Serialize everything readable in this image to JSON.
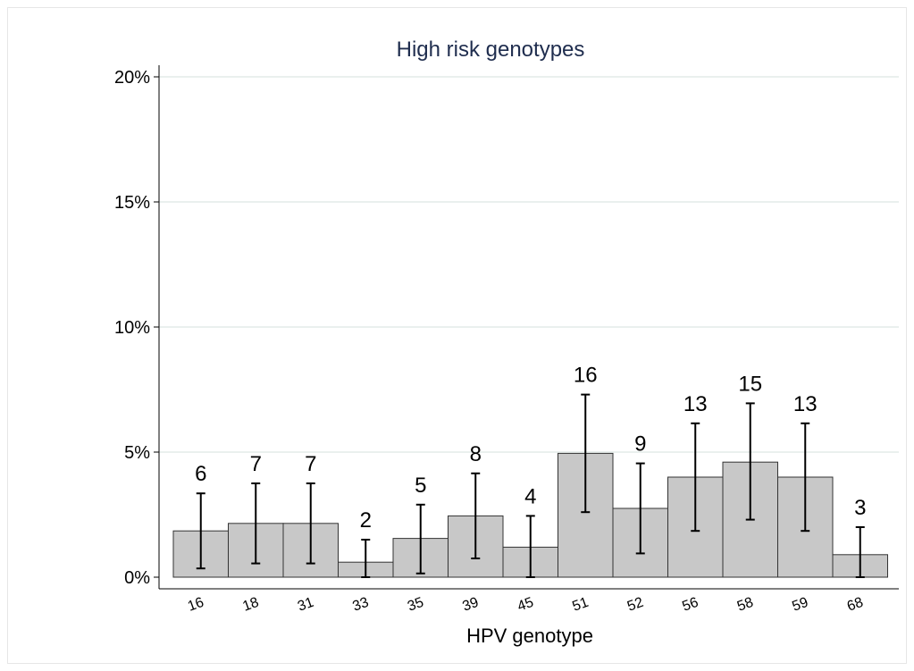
{
  "chart_data": {
    "type": "bar",
    "title": "High risk genotypes",
    "xlabel": "HPV genotype",
    "ylabel": "",
    "ylim": [
      0,
      20.5
    ],
    "yticks": [
      0,
      5,
      10,
      15,
      20
    ],
    "ytick_labels": [
      "0%",
      "5%",
      "10%",
      "15%",
      "20%"
    ],
    "grid": true,
    "categories": [
      "16",
      "18",
      "31",
      "33",
      "35",
      "39",
      "45",
      "51",
      "52",
      "56",
      "58",
      "59",
      "68"
    ],
    "values": [
      1.85,
      2.15,
      2.15,
      0.6,
      1.55,
      2.45,
      1.2,
      4.95,
      2.75,
      4.0,
      4.6,
      4.0,
      0.9
    ],
    "ci_lower": [
      0.35,
      0.55,
      0.55,
      0.0,
      0.15,
      0.75,
      0.0,
      2.6,
      0.95,
      1.85,
      2.3,
      1.85,
      0.0
    ],
    "ci_upper": [
      3.35,
      3.75,
      3.75,
      1.5,
      2.9,
      4.15,
      2.45,
      7.3,
      4.55,
      6.15,
      6.95,
      6.15,
      2.0
    ],
    "counts": [
      "6",
      "7",
      "7",
      "2",
      "5",
      "8",
      "4",
      "16",
      "9",
      "13",
      "15",
      "13",
      "3"
    ],
    "colors": {
      "bar_fill": "#c8c8c8",
      "bar_stroke": "#333333",
      "grid": "#e3ece9",
      "title": "#1f2d4e"
    }
  }
}
